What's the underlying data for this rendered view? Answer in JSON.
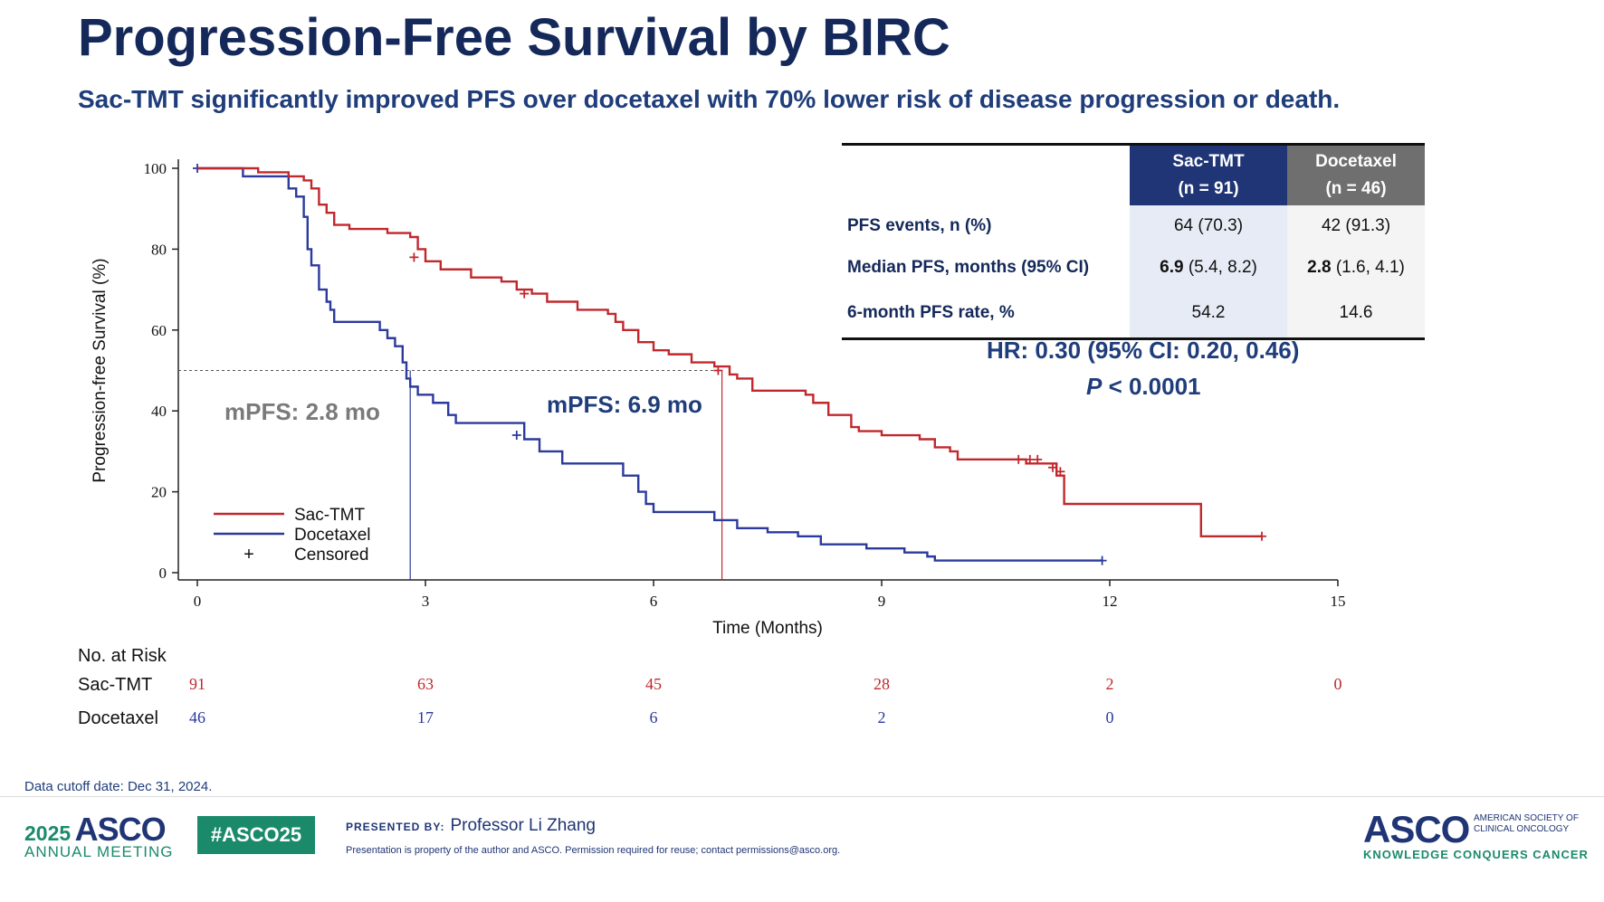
{
  "slide": {
    "title": "Progression-Free Survival by BIRC",
    "subtitle": "Sac-TMT significantly improved PFS over docetaxel with 70% lower risk of disease progression or death."
  },
  "table": {
    "col_sac_name": "Sac-TMT",
    "col_sac_n": "(n = 91)",
    "col_doc_name": "Docetaxel",
    "col_doc_n": "(n = 46)",
    "rows": [
      {
        "label": "PFS events, n (%)",
        "sac_bold": "",
        "sac_rest": "64 (70.3)",
        "doc_bold": "",
        "doc_rest": "42 (91.3)"
      },
      {
        "label": "Median PFS, months (95% CI)",
        "sac_bold": "6.9",
        "sac_rest": " (5.4, 8.2)",
        "doc_bold": "2.8",
        "doc_rest": " (1.6, 4.1)"
      },
      {
        "label": "6-month PFS rate, %",
        "sac_bold": "",
        "sac_rest": "54.2",
        "doc_bold": "",
        "doc_rest": "14.6"
      }
    ]
  },
  "stats": {
    "hr": "HR: 0.30 (95% CI: 0.20, 0.46)",
    "p_letter": "P",
    "p_rest": " < 0.0001"
  },
  "annotations": {
    "doc_median": "mPFS: 2.8 mo",
    "sac_median": "mPFS: 6.9 mo"
  },
  "risk": {
    "header": "No. at Risk",
    "sac_label": "Sac-TMT",
    "doc_label": "Docetaxel"
  },
  "footer": {
    "cutoff": "Data cutoff date: Dec 31, 2024.",
    "year": "2025",
    "asco": "ASCO",
    "annual_meeting": "ANNUAL MEETING",
    "hashtag": "#ASCO25",
    "presented_by": "PRESENTED BY:",
    "presenter": "Professor Li Zhang",
    "disclaimer": "Presentation is property of the author and ASCO. Permission required for reuse; contact permissions@asco.org.",
    "society": "AMERICAN SOCIETY OF CLINICAL ONCOLOGY",
    "tagline": "KNOWLEDGE CONQUERS CANCER"
  },
  "colors": {
    "sac": "#c0282d",
    "doc": "#2b3a9c",
    "navy": "#14285a"
  },
  "chart_data": {
    "type": "line",
    "xlabel": "Time (Months)",
    "ylabel": "Progression-free Survival (%)",
    "xlim": [
      0,
      15
    ],
    "ylim": [
      0,
      100
    ],
    "xticks": [
      0,
      3,
      6,
      9,
      12,
      15
    ],
    "yticks": [
      0,
      20,
      40,
      60,
      80,
      100
    ],
    "legend": [
      "Sac-TMT",
      "Docetaxel",
      "Censored"
    ],
    "legend_symbol_censored": "+",
    "median_line_y": 50,
    "series": [
      {
        "name": "Sac-TMT",
        "color": "#c0282d",
        "median": 6.9,
        "points": [
          [
            0,
            100
          ],
          [
            0.8,
            99
          ],
          [
            1.2,
            98
          ],
          [
            1.4,
            97
          ],
          [
            1.5,
            95
          ],
          [
            1.6,
            91
          ],
          [
            1.7,
            89
          ],
          [
            1.8,
            86
          ],
          [
            2.0,
            85
          ],
          [
            2.5,
            84
          ],
          [
            2.8,
            83
          ],
          [
            2.9,
            80
          ],
          [
            3.0,
            77
          ],
          [
            3.2,
            75
          ],
          [
            3.6,
            73
          ],
          [
            4.0,
            72
          ],
          [
            4.2,
            70
          ],
          [
            4.4,
            69
          ],
          [
            4.6,
            67
          ],
          [
            5.0,
            65
          ],
          [
            5.4,
            64
          ],
          [
            5.5,
            62
          ],
          [
            5.6,
            60
          ],
          [
            5.8,
            57
          ],
          [
            6.0,
            55
          ],
          [
            6.2,
            54
          ],
          [
            6.5,
            52
          ],
          [
            6.8,
            51
          ],
          [
            7.0,
            49
          ],
          [
            7.1,
            48
          ],
          [
            7.3,
            45
          ],
          [
            8.0,
            44
          ],
          [
            8.1,
            42
          ],
          [
            8.3,
            39
          ],
          [
            8.6,
            36
          ],
          [
            8.7,
            35
          ],
          [
            9.0,
            34
          ],
          [
            9.5,
            33
          ],
          [
            9.7,
            31
          ],
          [
            9.9,
            30
          ],
          [
            10.0,
            28
          ],
          [
            10.6,
            28
          ],
          [
            10.9,
            27
          ],
          [
            11.2,
            27
          ],
          [
            11.3,
            24
          ],
          [
            11.4,
            17
          ],
          [
            13.1,
            17
          ],
          [
            13.2,
            9
          ],
          [
            14.0,
            9
          ]
        ],
        "censor": [
          [
            2.85,
            78
          ],
          [
            4.3,
            69
          ],
          [
            6.85,
            50
          ],
          [
            10.8,
            28
          ],
          [
            10.95,
            28
          ],
          [
            11.05,
            28
          ],
          [
            11.25,
            26
          ],
          [
            11.35,
            25
          ],
          [
            14.0,
            9
          ]
        ]
      },
      {
        "name": "Docetaxel",
        "color": "#2b3a9c",
        "median": 2.8,
        "points": [
          [
            0,
            100
          ],
          [
            0.6,
            98
          ],
          [
            1.2,
            95
          ],
          [
            1.3,
            93
          ],
          [
            1.4,
            88
          ],
          [
            1.45,
            80
          ],
          [
            1.5,
            76
          ],
          [
            1.6,
            70
          ],
          [
            1.7,
            67
          ],
          [
            1.75,
            65
          ],
          [
            1.8,
            62
          ],
          [
            2.3,
            62
          ],
          [
            2.4,
            60
          ],
          [
            2.5,
            58
          ],
          [
            2.6,
            56
          ],
          [
            2.7,
            52
          ],
          [
            2.75,
            48
          ],
          [
            2.8,
            46
          ],
          [
            2.9,
            44
          ],
          [
            3.1,
            42
          ],
          [
            3.3,
            39
          ],
          [
            3.4,
            37
          ],
          [
            4.0,
            37
          ],
          [
            4.3,
            33
          ],
          [
            4.5,
            30
          ],
          [
            4.8,
            27
          ],
          [
            5.5,
            27
          ],
          [
            5.6,
            24
          ],
          [
            5.8,
            20
          ],
          [
            5.9,
            17
          ],
          [
            6.0,
            15
          ],
          [
            6.6,
            15
          ],
          [
            6.8,
            13
          ],
          [
            7.1,
            11
          ],
          [
            7.5,
            10
          ],
          [
            7.9,
            9
          ],
          [
            8.2,
            7
          ],
          [
            8.8,
            6
          ],
          [
            9.3,
            5
          ],
          [
            9.6,
            4
          ],
          [
            9.7,
            3
          ],
          [
            11.9,
            3
          ]
        ],
        "censor": [
          [
            0,
            100
          ],
          [
            4.2,
            34
          ],
          [
            11.9,
            3
          ]
        ]
      }
    ],
    "at_risk": {
      "x": [
        0,
        3,
        6,
        9,
        12,
        15
      ],
      "Sac-TMT": [
        91,
        63,
        45,
        28,
        2,
        0
      ],
      "Docetaxel": [
        46,
        17,
        6,
        2,
        0
      ]
    }
  }
}
